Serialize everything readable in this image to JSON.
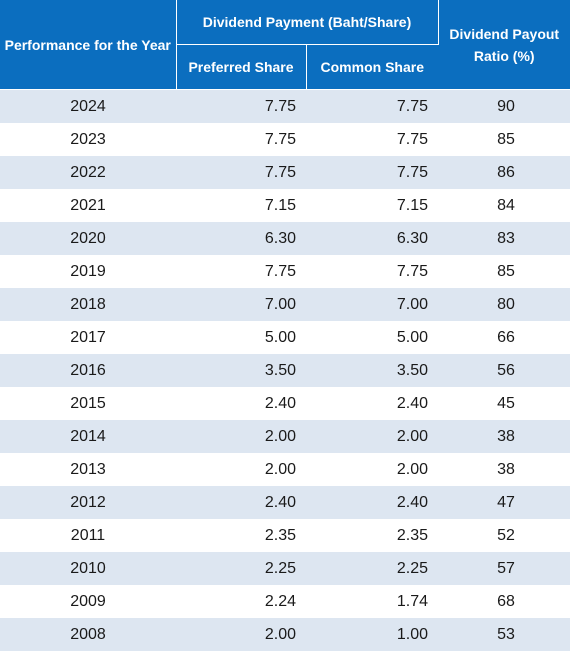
{
  "header": {
    "performance": "Performance for the Year",
    "dividend_payment": "Dividend Payment (Baht/Share)",
    "preferred_share": "Preferred Share",
    "common_share": "Common Share",
    "payout_ratio": "Dividend Payout Ratio (%)"
  },
  "rows": [
    {
      "year": "2024",
      "preferred": "7.75",
      "common": "7.75",
      "ratio": "90"
    },
    {
      "year": "2023",
      "preferred": "7.75",
      "common": "7.75",
      "ratio": "85"
    },
    {
      "year": "2022",
      "preferred": "7.75",
      "common": "7.75",
      "ratio": "86"
    },
    {
      "year": "2021",
      "preferred": "7.15",
      "common": "7.15",
      "ratio": "84"
    },
    {
      "year": "2020",
      "preferred": "6.30",
      "common": "6.30",
      "ratio": "83"
    },
    {
      "year": "2019",
      "preferred": "7.75",
      "common": "7.75",
      "ratio": "85"
    },
    {
      "year": "2018",
      "preferred": "7.00",
      "common": "7.00",
      "ratio": "80"
    },
    {
      "year": "2017",
      "preferred": "5.00",
      "common": "5.00",
      "ratio": "66"
    },
    {
      "year": "2016",
      "preferred": "3.50",
      "common": "3.50",
      "ratio": "56"
    },
    {
      "year": "2015",
      "preferred": "2.40",
      "common": "2.40",
      "ratio": "45"
    },
    {
      "year": "2014",
      "preferred": "2.00",
      "common": "2.00",
      "ratio": "38"
    },
    {
      "year": "2013",
      "preferred": "2.00",
      "common": "2.00",
      "ratio": "38"
    },
    {
      "year": "2012",
      "preferred": "2.40",
      "common": "2.40",
      "ratio": "47"
    },
    {
      "year": "2011",
      "preferred": "2.35",
      "common": "2.35",
      "ratio": "52"
    },
    {
      "year": "2010",
      "preferred": "2.25",
      "common": "2.25",
      "ratio": "57"
    },
    {
      "year": "2009",
      "preferred": "2.24",
      "common": "1.74",
      "ratio": "68"
    },
    {
      "year": "2008",
      "preferred": "2.00",
      "common": "1.00",
      "ratio": "53"
    }
  ],
  "colors": {
    "header_bg": "#0b6ebf",
    "stripe": "#dde6f1"
  }
}
